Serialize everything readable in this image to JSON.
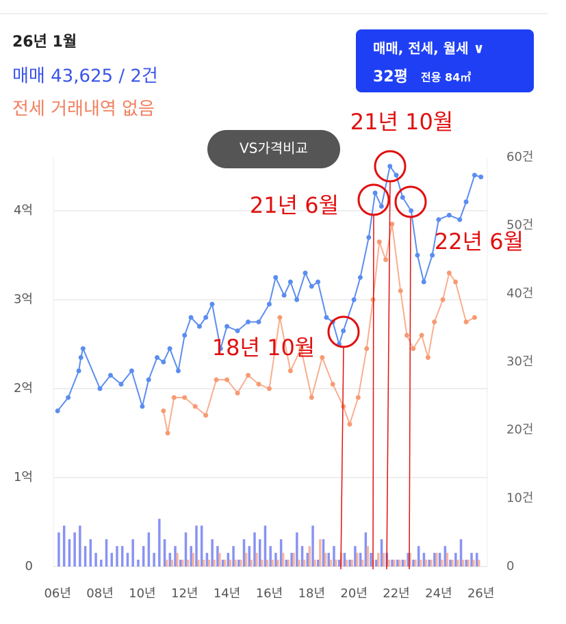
{
  "header": {
    "date": "26년 1월",
    "sale": "매매 43,625 / 2건",
    "jeonse": "전세 거래내역 없음"
  },
  "filter": {
    "types": "매매, 전세, 월세 ∨",
    "size": "32평",
    "area": "전용 84㎡"
  },
  "compare_button": "VS가격비교",
  "chart_data": {
    "type": "line",
    "ylim": [
      0,
      4.6
    ],
    "yticks": [
      0,
      {
        "value": 1,
        "label": "1억"
      },
      {
        "value": 2,
        "label": "2억"
      },
      {
        "value": 3,
        "label": "3억"
      },
      {
        "value": 4,
        "label": "4억"
      }
    ],
    "y2lim": [
      0,
      60
    ],
    "y2ticks": [
      0,
      {
        "value": 10,
        "label": "10건"
      },
      {
        "value": 20,
        "label": "20건"
      },
      {
        "value": 30,
        "label": "30건"
      },
      {
        "value": 40,
        "label": "40건"
      },
      {
        "value": 50,
        "label": "50건"
      },
      {
        "value": 60,
        "label": "60건"
      }
    ],
    "xlim": [
      2005.8,
      2026.3
    ],
    "xticks": [
      {
        "value": 2006,
        "label": "06년"
      },
      {
        "value": 2008,
        "label": "08년"
      },
      {
        "value": 2010,
        "label": "10년"
      },
      {
        "value": 2012,
        "label": "12년"
      },
      {
        "value": 2014,
        "label": "14년"
      },
      {
        "value": 2016,
        "label": "16년"
      },
      {
        "value": 2018,
        "label": "18년"
      },
      {
        "value": 2020,
        "label": "20년"
      },
      {
        "value": 2022,
        "label": "22년"
      },
      {
        "value": 2024,
        "label": "24년"
      },
      {
        "value": 2026,
        "label": "26년"
      }
    ],
    "grid": true,
    "series": [
      {
        "color": "#5b8def",
        "x": [
          2006,
          2006.5,
          2007,
          2007.1,
          2007.2,
          2008,
          2008.5,
          2009,
          2009.5,
          2010,
          2010.3,
          2010.7,
          2011,
          2011.3,
          2011.7,
          2012,
          2012.3,
          2012.7,
          2013,
          2013.3,
          2013.7,
          2014,
          2014.5,
          2015,
          2015.5,
          2016,
          2016.3,
          2016.7,
          2017,
          2017.3,
          2017.7,
          2018,
          2018.3,
          2018.7,
          2019,
          2019.3,
          2019.5,
          2020,
          2020.3,
          2020.7,
          2021,
          2021.3,
          2021.7,
          2022,
          2022.3,
          2022.7,
          2023,
          2023.3,
          2023.7,
          2024,
          2024.5,
          2025,
          2025.3,
          2025.7,
          2026
        ],
        "values": [
          1.75,
          1.9,
          2.2,
          2.35,
          2.45,
          2.0,
          2.15,
          2.05,
          2.2,
          1.8,
          2.1,
          2.35,
          2.3,
          2.45,
          2.2,
          2.6,
          2.8,
          2.7,
          2.8,
          2.95,
          2.45,
          2.7,
          2.65,
          2.75,
          2.75,
          2.95,
          3.25,
          3.05,
          3.2,
          3.0,
          3.3,
          3.15,
          3.2,
          2.8,
          2.75,
          2.5,
          2.65,
          3.0,
          3.25,
          3.7,
          4.2,
          4.05,
          4.5,
          4.4,
          4.15,
          4.0,
          3.5,
          3.2,
          3.5,
          3.9,
          3.95,
          3.9,
          4.1,
          4.4,
          4.38
        ]
      },
      {
        "color": "#f79a72",
        "x": [
          2011,
          2011.2,
          2011.5,
          2012,
          2012.5,
          2013,
          2013.5,
          2014,
          2014.5,
          2015,
          2015.5,
          2016,
          2016.5,
          2017,
          2017.5,
          2018,
          2018.5,
          2019,
          2019.5,
          2019.8,
          2020.2,
          2020.6,
          2020.9,
          2021.2,
          2021.5,
          2021.8,
          2022.2,
          2022.5,
          2022.8,
          2023.2,
          2023.5,
          2023.8,
          2024.2,
          2024.5,
          2024.8,
          2025.3,
          2025.7
        ],
        "values": [
          1.75,
          1.5,
          1.9,
          1.9,
          1.8,
          1.7,
          2.1,
          2.1,
          1.95,
          2.15,
          2.05,
          2.0,
          2.8,
          2.2,
          2.45,
          1.9,
          2.35,
          2.05,
          1.8,
          1.6,
          1.9,
          2.45,
          3.0,
          3.65,
          3.45,
          3.85,
          3.1,
          2.6,
          2.45,
          2.6,
          2.35,
          2.75,
          3.0,
          3.3,
          3.2,
          2.75,
          2.8
        ]
      }
    ],
    "bar_x": [
      2006,
      2006.25,
      2006.5,
      2006.75,
      2007,
      2007.25,
      2007.5,
      2007.75,
      2008,
      2008.25,
      2008.5,
      2008.75,
      2009,
      2009.25,
      2009.5,
      2009.75,
      2010,
      2010.25,
      2010.5,
      2010.75,
      2011,
      2011.25,
      2011.5,
      2011.75,
      2012,
      2012.25,
      2012.5,
      2012.75,
      2013,
      2013.25,
      2013.5,
      2013.75,
      2014,
      2014.25,
      2014.5,
      2014.75,
      2015,
      2015.25,
      2015.5,
      2015.75,
      2016,
      2016.25,
      2016.5,
      2016.75,
      2017,
      2017.25,
      2017.5,
      2017.75,
      2018,
      2018.25,
      2018.5,
      2018.75,
      2019,
      2019.25,
      2019.5,
      2019.75,
      2020,
      2020.25,
      2020.5,
      2020.75,
      2021,
      2021.25,
      2021.5,
      2021.75,
      2022,
      2022.25,
      2022.5,
      2022.75,
      2023,
      2023.25,
      2023.5,
      2023.75,
      2024,
      2024.25,
      2024.5,
      2024.75,
      2025,
      2025.25,
      2025.5,
      2025.75
    ],
    "bars": [
      {
        "color": "#6a78f0",
        "values": [
          5,
          6,
          4,
          5,
          6,
          3,
          4,
          2,
          1,
          4,
          2,
          3,
          3,
          2,
          4,
          1,
          3,
          5,
          2,
          7,
          4,
          2,
          3,
          1,
          5,
          3,
          6,
          6,
          2,
          4,
          3,
          1,
          2,
          3,
          1,
          4,
          3,
          5,
          4,
          6,
          3,
          2,
          4,
          1,
          2,
          5,
          3,
          2,
          6,
          1,
          4,
          2,
          3,
          1,
          2,
          1,
          3,
          2,
          5,
          2,
          1,
          4,
          2,
          1,
          1,
          1,
          2,
          1,
          3,
          2,
          1,
          2,
          2,
          3,
          1,
          2,
          4,
          1,
          2,
          2
        ]
      },
      {
        "color": "#f4a58a",
        "values": [
          null,
          null,
          null,
          null,
          null,
          null,
          null,
          null,
          null,
          null,
          null,
          null,
          null,
          null,
          null,
          null,
          null,
          null,
          null,
          null,
          1,
          1,
          2,
          1,
          1,
          2,
          1,
          1,
          1,
          1,
          2,
          1,
          1,
          1,
          1,
          2,
          1,
          2,
          1,
          1,
          1,
          1,
          2,
          1,
          2,
          1,
          1,
          3,
          1,
          4,
          2,
          1,
          1,
          2,
          1,
          1,
          2,
          1,
          3,
          1,
          2,
          2,
          1,
          1,
          1,
          1,
          2,
          1,
          1,
          1,
          1,
          2,
          1,
          2,
          1,
          1,
          1,
          1,
          1,
          1
        ]
      }
    ],
    "annotations": [
      "21년 10월",
      "21년 6월",
      "22년 6월",
      "18년 10월"
    ]
  }
}
